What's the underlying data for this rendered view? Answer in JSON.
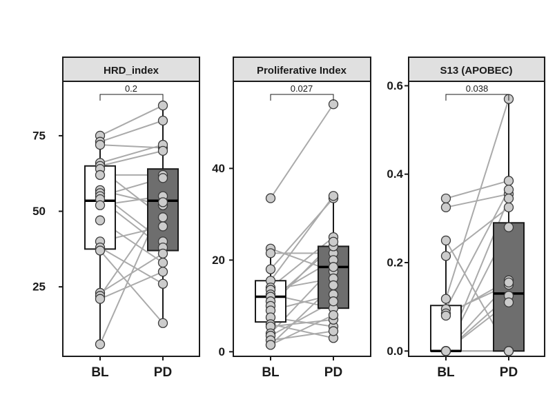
{
  "chart_data": [
    {
      "type": "box",
      "title": "HRD_index",
      "categories": [
        "BL",
        "PD"
      ],
      "ylim": [
        2,
        93
      ],
      "yticks": [
        25,
        50,
        75
      ],
      "ytick_labels": [
        "25",
        "50",
        "75"
      ],
      "p_value": "0.2",
      "boxes": [
        {
          "category": "BL",
          "q1": 37.5,
          "median": 53.5,
          "q3": 65,
          "whisker_low": 6,
          "whisker_high": 75,
          "fill": "#ffffff"
        },
        {
          "category": "PD",
          "q1": 37,
          "median": 53.5,
          "q3": 64,
          "whisker_low": 13,
          "whisker_high": 85,
          "fill": "#6e6e6e"
        }
      ],
      "pairs": [
        [
          75,
          85
        ],
        [
          73,
          80
        ],
        [
          72,
          71
        ],
        [
          66,
          72
        ],
        [
          65,
          70
        ],
        [
          64,
          48
        ],
        [
          62,
          62
        ],
        [
          57,
          52
        ],
        [
          56,
          40
        ],
        [
          55,
          61
        ],
        [
          54,
          38
        ],
        [
          52,
          55
        ],
        [
          47,
          33
        ],
        [
          40,
          45
        ],
        [
          38,
          26
        ],
        [
          37,
          13
        ],
        [
          23,
          36
        ],
        [
          22,
          52
        ],
        [
          21,
          30
        ],
        [
          6,
          53
        ]
      ]
    },
    {
      "type": "box",
      "title": "Proliferative Index",
      "categories": [
        "BL",
        "PD"
      ],
      "ylim": [
        -1,
        59
      ],
      "yticks": [
        0,
        20,
        40
      ],
      "ytick_labels": [
        "0",
        "20",
        "40"
      ],
      "p_value": "0.027",
      "boxes": [
        {
          "category": "BL",
          "q1": 6.5,
          "median": 12,
          "q3": 15.5,
          "whisker_low": 1.5,
          "whisker_high": 22,
          "fill": "#ffffff"
        },
        {
          "category": "PD",
          "q1": 9.5,
          "median": 18.5,
          "q3": 23,
          "whisker_low": 3,
          "whisker_high": 34,
          "fill": "#6e6e6e"
        }
      ],
      "pairs": [
        [
          33.5,
          54
        ],
        [
          22.5,
          17.5
        ],
        [
          21.5,
          21.5
        ],
        [
          18,
          33.5
        ],
        [
          15.5,
          34
        ],
        [
          14,
          25
        ],
        [
          13.5,
          16
        ],
        [
          12.5,
          9.5
        ],
        [
          12,
          20
        ],
        [
          11,
          23
        ],
        [
          10,
          24
        ],
        [
          9,
          12.5
        ],
        [
          7.5,
          5.5
        ],
        [
          6,
          3
        ],
        [
          5.5,
          7
        ],
        [
          4,
          18.5
        ],
        [
          3.5,
          11
        ],
        [
          2.5,
          4.5
        ],
        [
          1.5,
          14.5
        ],
        [
          1.5,
          8
        ]
      ]
    },
    {
      "type": "box",
      "title": "S13 (APOBEC)",
      "categories": [
        "BL",
        "PD"
      ],
      "ylim": [
        -0.012,
        0.61
      ],
      "yticks": [
        0.0,
        0.2,
        0.4,
        0.6
      ],
      "ytick_labels": [
        "0.0",
        "0.2",
        "0.4",
        "0.6"
      ],
      "p_value": "0.038",
      "boxes": [
        {
          "category": "BL",
          "q1": 0.0,
          "median": 0.0,
          "q3": 0.103,
          "whisker_low": 0.0,
          "whisker_high": 0.25,
          "fill": "#ffffff"
        },
        {
          "category": "PD",
          "q1": 0.0,
          "median": 0.13,
          "q3": 0.29,
          "whisker_low": 0.0,
          "whisker_high": 0.57,
          "fill": "#6e6e6e"
        }
      ],
      "pairs": [
        [
          0.345,
          0.385
        ],
        [
          0.325,
          0.355
        ],
        [
          0.25,
          0.0
        ],
        [
          0.215,
          0.325
        ],
        [
          0.118,
          0.57
        ],
        [
          0.095,
          0.365
        ],
        [
          0.085,
          0.15
        ],
        [
          0.08,
          0.16
        ],
        [
          0.0,
          0.345
        ],
        [
          0.0,
          0.28
        ],
        [
          0.0,
          0.125
        ],
        [
          0.0,
          0.11
        ],
        [
          0.0,
          0.155
        ],
        [
          0.0,
          0.0
        ],
        [
          0.0,
          0.0
        ],
        [
          0.0,
          0.0
        ]
      ]
    }
  ],
  "colors": {
    "strip_fill": "#e0e0e0",
    "frame": "#1a1a1a",
    "pd_box_fill": "#6e6e6e",
    "bl_box_fill": "#ffffff",
    "pair_line": "#aaaaaa",
    "point_fill": "#cccccc",
    "point_stroke": "#3a3a3a"
  }
}
